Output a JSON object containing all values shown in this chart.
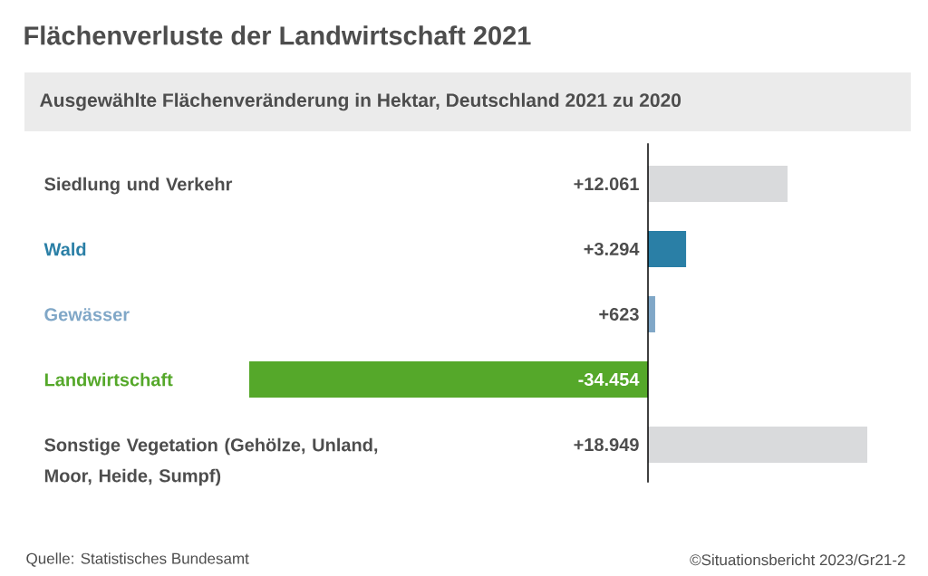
{
  "chart_data": {
    "type": "bar",
    "orientation": "horizontal",
    "title": "Flächenverluste der Landwirtschaft 2021",
    "subtitle": "Ausgewählte Flächenveränderung in Hektar, Deutschland 2021 zu 2020",
    "categories": [
      "Siedlung und Verkehr",
      "Wald",
      "Gewässer",
      "Landwirtschaft",
      "Sonstige Vegetation (Gehölze, Unland, Moor, Heide, Sumpf)"
    ],
    "values": [
      12061,
      3294,
      623,
      -34454,
      18949
    ],
    "colors": [
      "#d9dadc",
      "#2a7fa6",
      "#80a7c7",
      "#55a82a",
      "#d9dadc"
    ],
    "value_labels": [
      "+12.061",
      "+3.294",
      "+623",
      "-34.454",
      "+18.949"
    ],
    "tick_labels": false,
    "annotations": [
      "Quelle: Statistisches Bundesamt",
      "©Situationsbericht 2023/Gr21-2"
    ]
  }
}
